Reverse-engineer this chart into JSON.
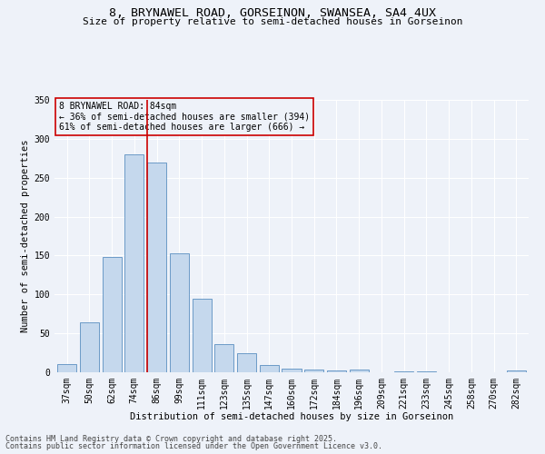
{
  "title_line1": "8, BRYNAWEL ROAD, GORSEINON, SWANSEA, SA4 4UX",
  "title_line2": "Size of property relative to semi-detached houses in Gorseinon",
  "categories": [
    "37sqm",
    "50sqm",
    "62sqm",
    "74sqm",
    "86sqm",
    "99sqm",
    "111sqm",
    "123sqm",
    "135sqm",
    "147sqm",
    "160sqm",
    "172sqm",
    "184sqm",
    "196sqm",
    "209sqm",
    "221sqm",
    "233sqm",
    "245sqm",
    "258sqm",
    "270sqm",
    "282sqm"
  ],
  "values": [
    10,
    64,
    148,
    280,
    270,
    153,
    95,
    36,
    25,
    9,
    5,
    3,
    2,
    3,
    0,
    1,
    1,
    0,
    0,
    0,
    2
  ],
  "bar_color": "#c5d8ed",
  "bar_edge_color": "#5a8fc0",
  "property_line_index": 4,
  "property_line_color": "#cc0000",
  "xlabel": "Distribution of semi-detached houses by size in Gorseinon",
  "ylabel": "Number of semi-detached properties",
  "ylim": [
    0,
    350
  ],
  "yticks": [
    0,
    50,
    100,
    150,
    200,
    250,
    300,
    350
  ],
  "annotation_title": "8 BRYNAWEL ROAD: 84sqm",
  "annotation_line1": "← 36% of semi-detached houses are smaller (394)",
  "annotation_line2": "61% of semi-detached houses are larger (666) →",
  "annotation_color": "#cc0000",
  "footer_line1": "Contains HM Land Registry data © Crown copyright and database right 2025.",
  "footer_line2": "Contains public sector information licensed under the Open Government Licence v3.0.",
  "bg_color": "#eef2f9",
  "grid_color": "#ffffff",
  "title_fontsize": 9.5,
  "subtitle_fontsize": 8,
  "tick_fontsize": 7,
  "axis_label_fontsize": 7.5,
  "annotation_fontsize": 7,
  "footer_fontsize": 6
}
